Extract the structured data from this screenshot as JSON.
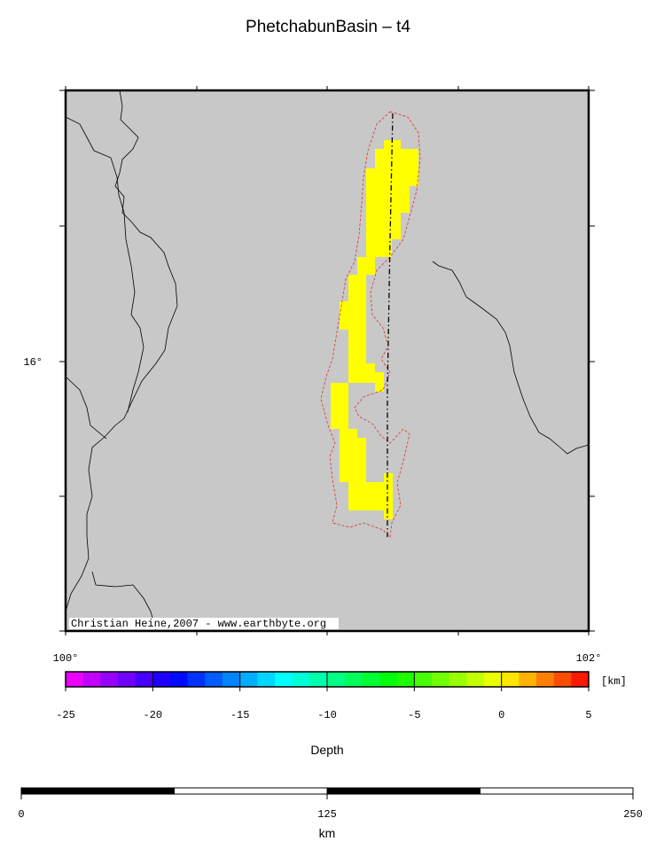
{
  "title": "PhetchabunBasin – t4",
  "map": {
    "lat_labels": [
      "16°"
    ],
    "lon_labels": [
      "100°",
      "102°"
    ],
    "credit": "Christian Heine,2007 - www.earthbyte.org"
  },
  "colorbar": {
    "ticks": [
      -25,
      -20,
      -15,
      -10,
      -5,
      0,
      5
    ],
    "unit": "[km]",
    "label": "Depth"
  },
  "scalebar": {
    "ticks": [
      0,
      125,
      250
    ],
    "unit": "km"
  }
}
